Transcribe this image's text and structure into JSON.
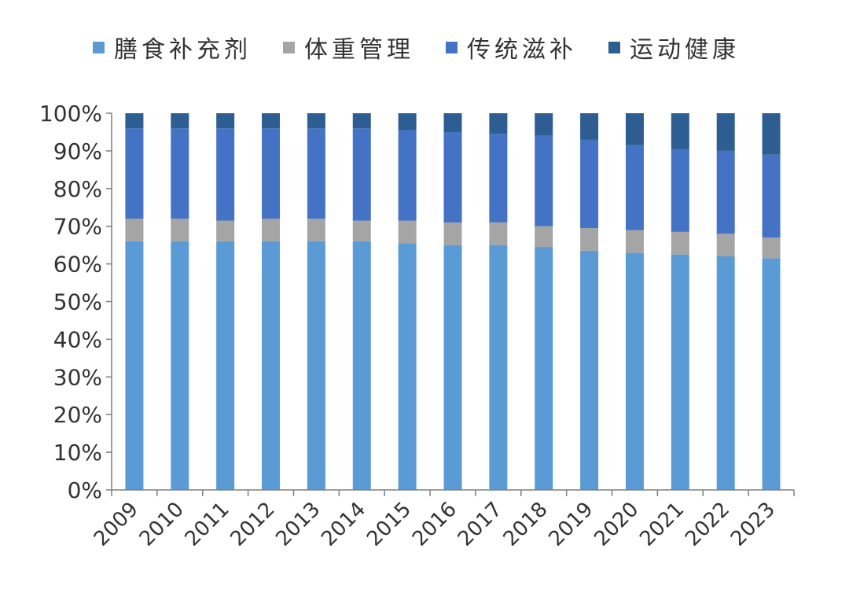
{
  "chart_data": {
    "type": "bar",
    "stacked": true,
    "normalized": true,
    "categories": [
      "2009",
      "2010",
      "2011",
      "2012",
      "2013",
      "2014",
      "2015",
      "2016",
      "2017",
      "2018",
      "2019",
      "2020",
      "2021",
      "2022",
      "2023"
    ],
    "series": [
      {
        "name": "膳食补充剂",
        "color": "#5b9bd5",
        "values": [
          66,
          66,
          66,
          66,
          66,
          66,
          65.5,
          65,
          65,
          64.5,
          63.5,
          63,
          62.5,
          62,
          61.5
        ]
      },
      {
        "name": "体重管理",
        "color": "#a5a5a5",
        "values": [
          6,
          6,
          5.5,
          6,
          6,
          5.5,
          6,
          6,
          6,
          5.5,
          6,
          6,
          6,
          6,
          5.5
        ]
      },
      {
        "name": "传统滋补",
        "color": "#4472c4",
        "values": [
          24,
          24,
          24.5,
          24,
          24,
          24.5,
          24,
          24,
          23.5,
          24,
          23.5,
          22.5,
          22,
          22,
          22
        ]
      },
      {
        "name": "运动健康",
        "color": "#2e5d91",
        "values": [
          4,
          4,
          4,
          4,
          4,
          4,
          4.5,
          5,
          5.5,
          6,
          7,
          8.5,
          9.5,
          10,
          11
        ]
      }
    ],
    "yticks": [
      "0%",
      "10%",
      "20%",
      "30%",
      "40%",
      "50%",
      "60%",
      "70%",
      "80%",
      "90%",
      "100%"
    ],
    "ylim": [
      0,
      100
    ],
    "xlabel": "",
    "ylabel": "",
    "title": "",
    "grid": false,
    "legend": "top"
  }
}
